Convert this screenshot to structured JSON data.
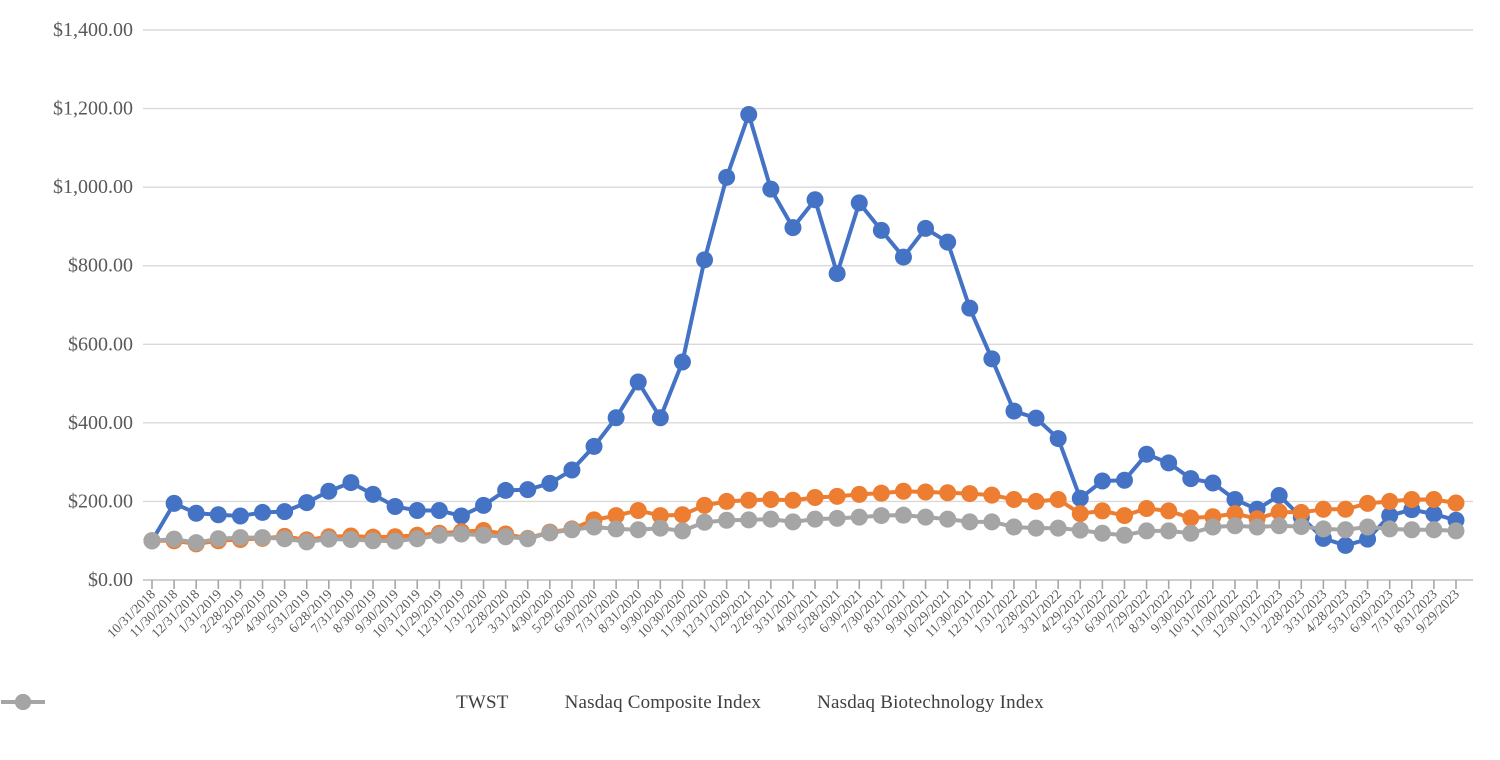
{
  "chart_data": {
    "type": "line",
    "title": "",
    "x_categories": [
      "10/31/2018",
      "11/30/2018",
      "12/31/2018",
      "1/31/2019",
      "2/28/2019",
      "3/29/2019",
      "4/30/2019",
      "5/31/2019",
      "6/28/2019",
      "7/31/2019",
      "8/30/2019",
      "9/30/2019",
      "10/31/2019",
      "11/29/2019",
      "12/31/2019",
      "1/31/2020",
      "2/28/2020",
      "3/31/2020",
      "4/30/2020",
      "5/29/2020",
      "6/30/2020",
      "7/31/2020",
      "8/31/2020",
      "9/30/2020",
      "10/30/2020",
      "11/30/2020",
      "12/31/2020",
      "1/29/2021",
      "2/26/2021",
      "3/31/2021",
      "4/30/2021",
      "5/28/2021",
      "6/30/2021",
      "7/30/2021",
      "8/31/2021",
      "9/30/2021",
      "10/29/2021",
      "11/30/2021",
      "12/31/2021",
      "1/31/2022",
      "2/28/2022",
      "3/31/2022",
      "4/29/2022",
      "5/31/2022",
      "6/30/2022",
      "7/29/2022",
      "8/31/2022",
      "9/30/2022",
      "10/31/2022",
      "11/30/2022",
      "12/30/2022",
      "1/31/2023",
      "2/28/2023",
      "3/31/2023",
      "4/28/2023",
      "5/31/2023",
      "6/30/2023",
      "7/31/2023",
      "8/31/2023",
      "9/29/2023"
    ],
    "series": [
      {
        "name": "TWST",
        "color": "#4472C4",
        "values": [
          100,
          195,
          170,
          166,
          163,
          172,
          174,
          197,
          226,
          248,
          218,
          187,
          177,
          177,
          163,
          190,
          228,
          230,
          246,
          280,
          340,
          413,
          504,
          413,
          555,
          815,
          1025,
          1185,
          995,
          897,
          968,
          780,
          960,
          890,
          822,
          895,
          860,
          692,
          563,
          430,
          412,
          360,
          208,
          252,
          254,
          320,
          298,
          258,
          247,
          205,
          180,
          215,
          160,
          106,
          88,
          104,
          164,
          179,
          168,
          152
        ]
      },
      {
        "name": "Nasdaq Composite Index",
        "color": "#ED7D31",
        "values": [
          100,
          100,
          92,
          100,
          103,
          106,
          111,
          102,
          110,
          112,
          109,
          110,
          114,
          119,
          123,
          126,
          117,
          106,
          122,
          130,
          153,
          164,
          177,
          164,
          166,
          190,
          200,
          203,
          205,
          203,
          210,
          213,
          218,
          221,
          226,
          224,
          222,
          220,
          216,
          205,
          200,
          205,
          169,
          176,
          164,
          182,
          176,
          158,
          161,
          169,
          156,
          173,
          172,
          180,
          180,
          195,
          200,
          205,
          205,
          196
        ]
      },
      {
        "name": "Nasdaq Biotechnology Index",
        "color": "#A5A5A5",
        "values": [
          100,
          104,
          95,
          105,
          108,
          108,
          105,
          97,
          104,
          103,
          100,
          99,
          105,
          114,
          117,
          114,
          110,
          105,
          120,
          128,
          135,
          130,
          128,
          132,
          125,
          147,
          152,
          153,
          155,
          148,
          155,
          157,
          160,
          164,
          165,
          160,
          155,
          148,
          148,
          135,
          132,
          132,
          127,
          119,
          114,
          125,
          125,
          119,
          135,
          138,
          135,
          138,
          136,
          130,
          128,
          135,
          130,
          128,
          128,
          125
        ]
      }
    ],
    "y_axis": {
      "min": 0,
      "max": 1400,
      "step": 200,
      "tick_labels": [
        "$0.00",
        "$200.00",
        "$400.00",
        "$600.00",
        "$800.00",
        "$1,000.00",
        "$1,200.00",
        "$1,400.00"
      ]
    },
    "x_axis": {
      "label_rotation_deg": -45
    },
    "grid": true,
    "legend_position": "bottom"
  },
  "colors": {
    "background": "#FFFFFF",
    "gridline": "#D9D9D9",
    "axis_line": "#BFBFBF",
    "tick_mark": "#A6A6A6",
    "axis_label": "#595959",
    "legend_text": "#404040"
  }
}
